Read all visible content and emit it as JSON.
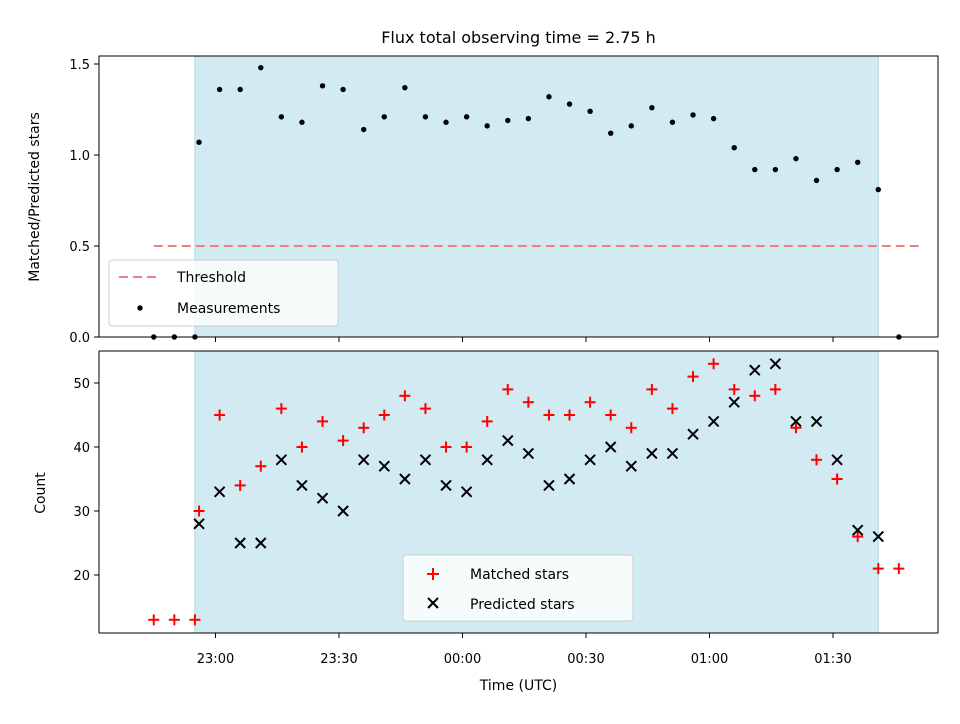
{
  "chart_data": [
    {
      "type": "scatter",
      "title": "Flux total observing time = 2.75 h",
      "xlabel": "",
      "ylabel": "Matched/Predicted stars",
      "ylim": [
        0,
        1.55
      ],
      "yticks": [
        "0.0",
        "0.5",
        "1.0",
        "1.5"
      ],
      "threshold": {
        "name": "Threshold",
        "value": 0.5,
        "x_start": "22:45",
        "x_end": "01:51",
        "color": "#f08080",
        "style": "dashed"
      },
      "observing_window": {
        "start": "22:55",
        "end": "01:41",
        "color": "#add8e6"
      },
      "series": [
        {
          "name": "Measurements",
          "color": "#000000",
          "marker": "dot",
          "points": [
            [
              "22:45",
              0.0
            ],
            [
              "22:50",
              0.0
            ],
            [
              "22:55",
              0.0
            ],
            [
              "22:56",
              1.07
            ],
            [
              "23:01",
              1.36
            ],
            [
              "23:06",
              1.36
            ],
            [
              "23:11",
              1.48
            ],
            [
              "23:16",
              1.21
            ],
            [
              "23:21",
              1.18
            ],
            [
              "23:26",
              1.38
            ],
            [
              "23:31",
              1.36
            ],
            [
              "23:36",
              1.14
            ],
            [
              "23:41",
              1.21
            ],
            [
              "23:46",
              1.37
            ],
            [
              "23:51",
              1.21
            ],
            [
              "23:56",
              1.18
            ],
            [
              "00:01",
              1.21
            ],
            [
              "00:06",
              1.16
            ],
            [
              "00:11",
              1.19
            ],
            [
              "00:16",
              1.2
            ],
            [
              "00:21",
              1.32
            ],
            [
              "00:26",
              1.28
            ],
            [
              "00:31",
              1.24
            ],
            [
              "00:36",
              1.12
            ],
            [
              "00:41",
              1.16
            ],
            [
              "00:46",
              1.26
            ],
            [
              "00:51",
              1.18
            ],
            [
              "00:56",
              1.22
            ],
            [
              "01:01",
              1.2
            ],
            [
              "01:06",
              1.04
            ],
            [
              "01:11",
              0.92
            ],
            [
              "01:16",
              0.92
            ],
            [
              "01:21",
              0.98
            ],
            [
              "01:26",
              0.86
            ],
            [
              "01:31",
              0.92
            ],
            [
              "01:36",
              0.96
            ],
            [
              "01:41",
              0.81
            ],
            [
              "01:46",
              0.0
            ]
          ]
        }
      ],
      "legend": {
        "position": "lower-left",
        "entries": [
          "Threshold",
          "Measurements"
        ]
      }
    },
    {
      "type": "scatter",
      "title": "",
      "xlabel": "Time (UTC)",
      "ylabel": "Count",
      "ylim": [
        11,
        55
      ],
      "yticks": [
        "20",
        "30",
        "40",
        "50"
      ],
      "xticks": [
        "23:00",
        "23:30",
        "00:00",
        "00:30",
        "01:00",
        "01:30"
      ],
      "observing_window": {
        "start": "22:55",
        "end": "01:41",
        "color": "#add8e6"
      },
      "series": [
        {
          "name": "Matched stars",
          "color": "#ff0000",
          "marker": "plus",
          "points": [
            [
              "22:45",
              13
            ],
            [
              "22:50",
              13
            ],
            [
              "22:55",
              13
            ],
            [
              "22:56",
              30
            ],
            [
              "23:01",
              45
            ],
            [
              "23:06",
              34
            ],
            [
              "23:11",
              37
            ],
            [
              "23:16",
              46
            ],
            [
              "23:21",
              40
            ],
            [
              "23:26",
              44
            ],
            [
              "23:31",
              41
            ],
            [
              "23:36",
              43
            ],
            [
              "23:41",
              45
            ],
            [
              "23:46",
              48
            ],
            [
              "23:51",
              46
            ],
            [
              "23:56",
              40
            ],
            [
              "00:01",
              40
            ],
            [
              "00:06",
              44
            ],
            [
              "00:11",
              49
            ],
            [
              "00:16",
              47
            ],
            [
              "00:21",
              45
            ],
            [
              "00:26",
              45
            ],
            [
              "00:31",
              47
            ],
            [
              "00:36",
              45
            ],
            [
              "00:41",
              43
            ],
            [
              "00:46",
              49
            ],
            [
              "00:51",
              46
            ],
            [
              "00:56",
              51
            ],
            [
              "01:01",
              53
            ],
            [
              "01:06",
              49
            ],
            [
              "01:11",
              48
            ],
            [
              "01:16",
              49
            ],
            [
              "01:21",
              43
            ],
            [
              "01:26",
              38
            ],
            [
              "01:31",
              35
            ],
            [
              "01:36",
              26
            ],
            [
              "01:41",
              21
            ],
            [
              "01:46",
              21
            ]
          ]
        },
        {
          "name": "Predicted stars",
          "color": "#000000",
          "marker": "x",
          "points": [
            [
              "22:56",
              28
            ],
            [
              "23:01",
              33
            ],
            [
              "23:06",
              25
            ],
            [
              "23:11",
              25
            ],
            [
              "23:16",
              38
            ],
            [
              "23:21",
              34
            ],
            [
              "23:26",
              32
            ],
            [
              "23:31",
              30
            ],
            [
              "23:36",
              38
            ],
            [
              "23:41",
              37
            ],
            [
              "23:46",
              35
            ],
            [
              "23:51",
              38
            ],
            [
              "23:56",
              34
            ],
            [
              "00:01",
              33
            ],
            [
              "00:06",
              38
            ],
            [
              "00:11",
              41
            ],
            [
              "00:16",
              39
            ],
            [
              "00:21",
              34
            ],
            [
              "00:26",
              35
            ],
            [
              "00:31",
              38
            ],
            [
              "00:36",
              40
            ],
            [
              "00:41",
              37
            ],
            [
              "00:46",
              39
            ],
            [
              "00:51",
              39
            ],
            [
              "00:56",
              42
            ],
            [
              "01:01",
              44
            ],
            [
              "01:06",
              47
            ],
            [
              "01:11",
              52
            ],
            [
              "01:16",
              53
            ],
            [
              "01:21",
              44
            ],
            [
              "01:26",
              44
            ],
            [
              "01:31",
              38
            ],
            [
              "01:36",
              27
            ],
            [
              "01:41",
              26
            ]
          ]
        }
      ],
      "legend": {
        "position": "lower-center",
        "entries": [
          "Matched stars",
          "Predicted stars"
        ]
      }
    }
  ]
}
